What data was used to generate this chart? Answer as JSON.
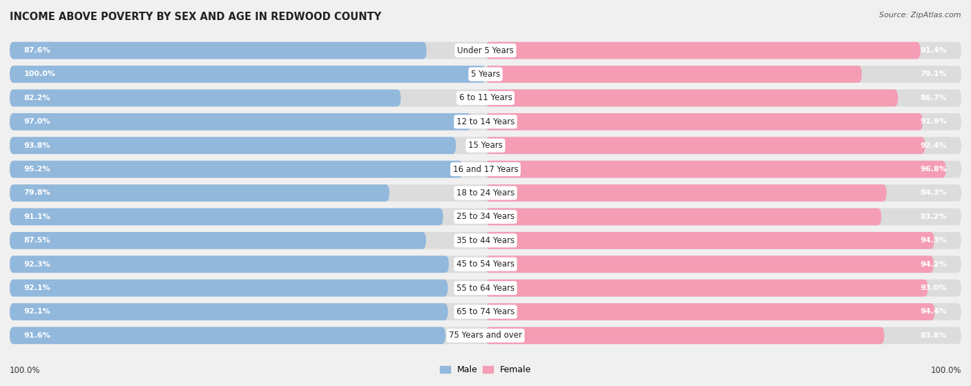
{
  "title": "INCOME ABOVE POVERTY BY SEX AND AGE IN REDWOOD COUNTY",
  "source": "Source: ZipAtlas.com",
  "categories": [
    "Under 5 Years",
    "5 Years",
    "6 to 11 Years",
    "12 to 14 Years",
    "15 Years",
    "16 and 17 Years",
    "18 to 24 Years",
    "25 to 34 Years",
    "35 to 44 Years",
    "45 to 54 Years",
    "55 to 64 Years",
    "65 to 74 Years",
    "75 Years and over"
  ],
  "male_values": [
    87.6,
    100.0,
    82.2,
    97.0,
    93.8,
    95.2,
    79.8,
    91.1,
    87.5,
    92.3,
    92.1,
    92.1,
    91.6
  ],
  "female_values": [
    91.4,
    79.1,
    86.7,
    91.9,
    92.4,
    96.8,
    84.3,
    83.2,
    94.3,
    94.2,
    93.0,
    94.4,
    83.8
  ],
  "male_color": "#92b8dc",
  "female_color": "#f49db5",
  "male_light": "#c8ddf0",
  "female_light": "#fbd0dc",
  "bg_color": "#f0f0f0",
  "row_color_odd": "#e8e8e8",
  "row_color_even": "#f0f0f0",
  "bar_bg": "#e0e0e0",
  "label_bg": "#ffffff",
  "title_fontsize": 10.5,
  "value_fontsize": 8.0,
  "cat_fontsize": 8.5,
  "legend_fontsize": 9.0,
  "tick_fontsize": 8.5
}
